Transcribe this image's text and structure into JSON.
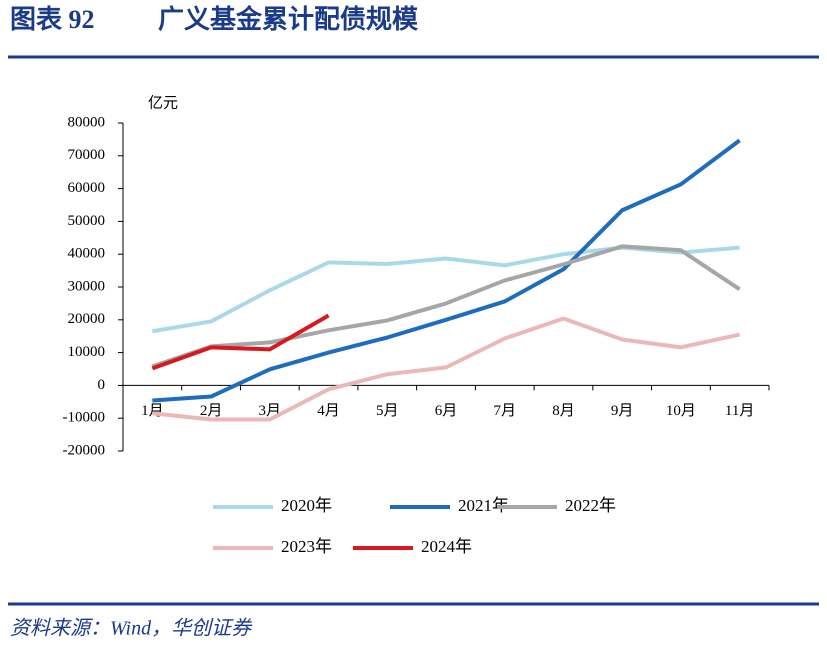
{
  "chart_data": {
    "type": "line",
    "label": "图表 92",
    "title": "广义基金累计配债规模",
    "y_label": "亿元",
    "source": "资料来源：Wind，华创证券",
    "categories": [
      "1月",
      "2月",
      "3月",
      "4月",
      "5月",
      "6月",
      "7月",
      "8月",
      "9月",
      "10月",
      "11月"
    ],
    "series": [
      {
        "name": "2020年",
        "color": "#a9d9e9",
        "values": [
          16500,
          19500,
          29000,
          37500,
          37000,
          38700,
          36600,
          40000,
          42000,
          40500,
          42000
        ]
      },
      {
        "name": "2021年",
        "color": "#1e6cc0",
        "values": [
          -4600,
          -3400,
          4900,
          10000,
          14600,
          20000,
          25600,
          35400,
          53400,
          61300,
          74700
        ]
      },
      {
        "name": "2022年",
        "color": "#a6a6a6",
        "values": [
          5800,
          11900,
          13100,
          16800,
          19800,
          25000,
          32000,
          36900,
          42400,
          41200,
          29300
        ]
      },
      {
        "name": "2023年",
        "color": "#ebb7b7",
        "values": [
          -8500,
          -10400,
          -10400,
          -1200,
          3400,
          5500,
          14300,
          20400,
          14000,
          11600,
          15500
        ]
      },
      {
        "name": "2024年",
        "color": "#d7191f",
        "values": [
          5200,
          11600,
          11000,
          21300,
          null,
          null,
          null,
          null,
          null,
          null,
          null
        ]
      }
    ],
    "ylim": [
      -20000,
      80000
    ],
    "yticks": [
      -20000,
      -10000,
      0,
      10000,
      20000,
      30000,
      40000,
      50000,
      60000,
      70000,
      80000
    ],
    "grid": false
  }
}
